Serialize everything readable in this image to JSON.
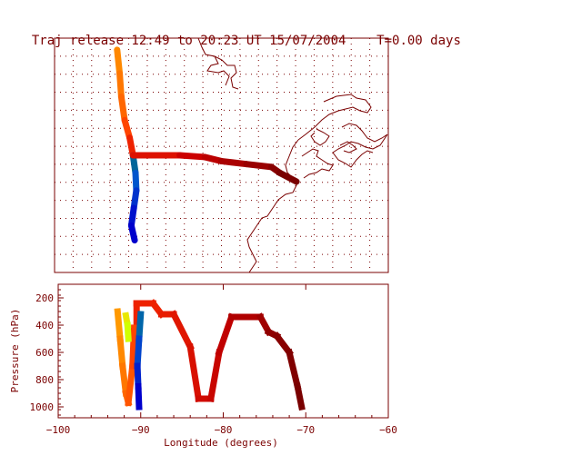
{
  "header": {
    "title": "Traj release 12:49 to 20:23 UT 15/07/2004",
    "time_label": "T=0.00 days"
  },
  "colors": {
    "axis": "#7a0000",
    "grid": "#7a0000",
    "coast": "#7a0000",
    "colormap": [
      "#0000cc",
      "#0066cc",
      "#008888",
      "#ffa500",
      "#ff6600",
      "#ee2200",
      "#7a0000"
    ]
  },
  "chart_data": [
    {
      "type": "line",
      "panel": "map",
      "xlim": [
        -100,
        -60
      ],
      "ylim": [
        20,
        60
      ],
      "grid": true,
      "series": [
        {
          "color_key": "north-track",
          "points": [
            [
              -92.5,
              58
            ],
            [
              -92.2,
              54
            ],
            [
              -92.0,
              50
            ],
            [
              -91.6,
              46
            ],
            [
              -91.0,
              43
            ],
            [
              -90.6,
              40
            ]
          ],
          "colors": [
            "#ffa500",
            "#ff8800",
            "#ff7700",
            "#ff6600",
            "#ff4400",
            "#ee2200"
          ]
        },
        {
          "color_key": "south-track",
          "points": [
            [
              -90.6,
              40
            ],
            [
              -90.3,
              37
            ],
            [
              -90.2,
              34
            ],
            [
              -90.5,
              31
            ],
            [
              -90.8,
              28
            ],
            [
              -90.4,
              25.5
            ]
          ],
          "colors": [
            "#008888",
            "#006699",
            "#0055cc",
            "#0033cc",
            "#0011cc",
            "#0000cc"
          ]
        },
        {
          "color_key": "east-track",
          "points": [
            [
              -90.6,
              40
            ],
            [
              -85,
              40
            ],
            [
              -82,
              39.7
            ],
            [
              -80,
              39
            ],
            [
              -77,
              38.5
            ],
            [
              -74,
              38
            ],
            [
              -73,
              37
            ],
            [
              -71,
              35.5
            ]
          ],
          "colors": [
            "#ee2200",
            "#dd1100",
            "#cc0000",
            "#bb0000",
            "#aa0000",
            "#990000",
            "#880000",
            "#7a0000"
          ]
        }
      ]
    },
    {
      "type": "line",
      "panel": "pressure",
      "xlabel": "Longitude  (degrees)",
      "ylabel": "Pressure  (hPa)",
      "xlim": [
        -100,
        -60
      ],
      "ylim": [
        1080,
        100
      ],
      "xticks": [
        -100,
        -90,
        -80,
        -70,
        -60
      ],
      "yticks": [
        200,
        400,
        600,
        800,
        1000
      ],
      "series": [
        {
          "color_key": "east-profile",
          "points": [
            [
              -90.5,
              420
            ],
            [
              -90.5,
              240
            ],
            [
              -88.5,
              240
            ],
            [
              -87.5,
              320
            ],
            [
              -86,
              320
            ],
            [
              -84,
              560
            ],
            [
              -83,
              940
            ],
            [
              -81.5,
              940
            ],
            [
              -80.5,
              600
            ],
            [
              -79,
              340
            ],
            [
              -75.5,
              340
            ],
            [
              -74.5,
              450
            ],
            [
              -73.5,
              480
            ],
            [
              -72,
              600
            ],
            [
              -71,
              850
            ],
            [
              -70.5,
              1000
            ]
          ],
          "colors": [
            "#ee2200",
            "#ee2200",
            "#ee2200",
            "#ee2200",
            "#e81c00",
            "#e01600",
            "#d81000",
            "#d00a00",
            "#c80600",
            "#c00000",
            "#b00000",
            "#a00000",
            "#900000",
            "#880000",
            "#800000",
            "#7a0000"
          ]
        },
        {
          "color_key": "west-profile",
          "points": [
            [
              -92.8,
              300
            ],
            [
              -92.5,
              500
            ],
            [
              -92.2,
              700
            ],
            [
              -91.8,
              900
            ],
            [
              -91.5,
              970
            ],
            [
              -91.0,
              700
            ],
            [
              -90.8,
              420
            ]
          ],
          "colors": [
            "#ffa500",
            "#ff9900",
            "#ff8800",
            "#ff7700",
            "#ff6600",
            "#ff5500",
            "#ff4400"
          ]
        },
        {
          "color_key": "blue-profile",
          "points": [
            [
              -90.0,
              320
            ],
            [
              -90.2,
              500
            ],
            [
              -90.4,
              700
            ],
            [
              -90.3,
              850
            ],
            [
              -90.2,
              1000
            ]
          ],
          "colors": [
            "#008888",
            "#0066aa",
            "#0044cc",
            "#0022cc",
            "#0000cc"
          ]
        },
        {
          "color_key": "yellow-profile",
          "points": [
            [
              -91.8,
              330
            ],
            [
              -91.6,
              400
            ],
            [
              -91.5,
              500
            ]
          ],
          "colors": [
            "#ffd800",
            "#e8e800",
            "#d0ff00"
          ]
        }
      ]
    }
  ]
}
